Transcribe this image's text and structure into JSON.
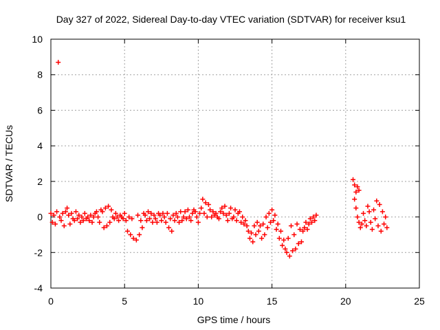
{
  "chart_data": {
    "type": "scatter",
    "title": "Day 327 of 2022, Sidereal Day-to-day VTEC variation (SDTVAR) for receiver ksu1",
    "xlabel": "GPS time / hours",
    "ylabel": "SDTVAR / TECUs",
    "xlim": [
      0,
      25
    ],
    "ylim": [
      -4,
      10
    ],
    "xticks": [
      "0",
      "5",
      "10",
      "15",
      "20",
      "25"
    ],
    "yticks": [
      "-4",
      "-2",
      "0",
      "2",
      "4",
      "6",
      "8",
      "10"
    ],
    "grid": true,
    "marker": "+",
    "series": [
      {
        "name": "ksu1",
        "color": "#ff0000",
        "points": [
          [
            0.0,
            0.2
          ],
          [
            0.1,
            -0.3
          ],
          [
            0.2,
            0.1
          ],
          [
            0.3,
            -0.4
          ],
          [
            0.4,
            0.3
          ],
          [
            0.5,
            8.7
          ],
          [
            0.6,
            0.0
          ],
          [
            0.7,
            -0.2
          ],
          [
            0.8,
            0.2
          ],
          [
            0.9,
            -0.5
          ],
          [
            1.0,
            0.3
          ],
          [
            1.1,
            0.5
          ],
          [
            1.2,
            0.1
          ],
          [
            1.3,
            -0.4
          ],
          [
            1.4,
            0.2
          ],
          [
            1.5,
            -0.1
          ],
          [
            1.6,
            -0.2
          ],
          [
            1.7,
            0.3
          ],
          [
            1.8,
            -0.1
          ],
          [
            1.9,
            0.1
          ],
          [
            2.0,
            -0.3
          ],
          [
            2.1,
            0.0
          ],
          [
            2.2,
            -0.2
          ],
          [
            2.3,
            0.2
          ],
          [
            2.4,
            -0.1
          ],
          [
            2.5,
            0.0
          ],
          [
            2.6,
            -0.2
          ],
          [
            2.7,
            0.1
          ],
          [
            2.8,
            -0.3
          ],
          [
            2.9,
            0.0
          ],
          [
            3.0,
            0.2
          ],
          [
            3.1,
            0.3
          ],
          [
            3.2,
            0.0
          ],
          [
            3.3,
            -0.3
          ],
          [
            3.4,
            0.4
          ],
          [
            3.5,
            0.3
          ],
          [
            3.6,
            -0.6
          ],
          [
            3.7,
            0.5
          ],
          [
            3.8,
            -0.5
          ],
          [
            3.9,
            0.6
          ],
          [
            4.0,
            -0.3
          ],
          [
            4.1,
            0.4
          ],
          [
            4.2,
            0.0
          ],
          [
            4.3,
            -0.1
          ],
          [
            4.4,
            0.2
          ],
          [
            4.5,
            0.0
          ],
          [
            4.6,
            -0.2
          ],
          [
            4.7,
            0.1
          ],
          [
            4.8,
            0.0
          ],
          [
            4.9,
            -0.1
          ],
          [
            5.0,
            0.2
          ],
          [
            5.1,
            -0.2
          ],
          [
            5.2,
            -0.8
          ],
          [
            5.3,
            0.0
          ],
          [
            5.4,
            -1.0
          ],
          [
            5.5,
            -0.1
          ],
          [
            5.6,
            -1.2
          ],
          [
            5.8,
            -1.3
          ],
          [
            5.9,
            0.1
          ],
          [
            6.0,
            -1.0
          ],
          [
            6.1,
            -0.2
          ],
          [
            6.2,
            -0.6
          ],
          [
            6.3,
            0.2
          ],
          [
            6.4,
            0.1
          ],
          [
            6.5,
            -0.2
          ],
          [
            6.6,
            0.3
          ],
          [
            6.7,
            -0.1
          ],
          [
            6.8,
            0.2
          ],
          [
            6.9,
            -0.3
          ],
          [
            7.0,
            0.1
          ],
          [
            7.1,
            -0.1
          ],
          [
            7.2,
            -0.3
          ],
          [
            7.3,
            0.2
          ],
          [
            7.4,
            0.1
          ],
          [
            7.5,
            -0.2
          ],
          [
            7.6,
            0.2
          ],
          [
            7.7,
            0.0
          ],
          [
            7.8,
            -0.3
          ],
          [
            7.9,
            0.2
          ],
          [
            8.0,
            -0.6
          ],
          [
            8.1,
            -0.1
          ],
          [
            8.2,
            -0.8
          ],
          [
            8.3,
            0.1
          ],
          [
            8.4,
            -0.2
          ],
          [
            8.5,
            0.2
          ],
          [
            8.6,
            0.0
          ],
          [
            8.7,
            -0.3
          ],
          [
            8.8,
            0.3
          ],
          [
            8.9,
            -0.2
          ],
          [
            9.0,
            0.0
          ],
          [
            9.1,
            0.3
          ],
          [
            9.2,
            -0.1
          ],
          [
            9.3,
            0.4
          ],
          [
            9.4,
            0.0
          ],
          [
            9.5,
            -0.2
          ],
          [
            9.6,
            0.2
          ],
          [
            9.7,
            0.4
          ],
          [
            9.8,
            0.3
          ],
          [
            9.9,
            0.0
          ],
          [
            10.0,
            -0.3
          ],
          [
            10.1,
            0.2
          ],
          [
            10.2,
            0.5
          ],
          [
            10.3,
            1.0
          ],
          [
            10.4,
            0.2
          ],
          [
            10.5,
            0.8
          ],
          [
            10.6,
            0.0
          ],
          [
            10.7,
            0.7
          ],
          [
            10.8,
            0.4
          ],
          [
            10.9,
            0.0
          ],
          [
            11.0,
            0.3
          ],
          [
            11.1,
            0.1
          ],
          [
            11.2,
            0.2
          ],
          [
            11.3,
            0.0
          ],
          [
            11.4,
            -0.1
          ],
          [
            11.5,
            0.3
          ],
          [
            11.6,
            0.5
          ],
          [
            11.7,
            0.2
          ],
          [
            11.8,
            0.6
          ],
          [
            11.9,
            0.1
          ],
          [
            12.0,
            -0.2
          ],
          [
            12.1,
            0.2
          ],
          [
            12.2,
            0.5
          ],
          [
            12.3,
            -0.1
          ],
          [
            12.4,
            0.0
          ],
          [
            12.5,
            0.4
          ],
          [
            12.6,
            -0.2
          ],
          [
            12.7,
            0.2
          ],
          [
            12.8,
            0.3
          ],
          [
            12.9,
            -0.3
          ],
          [
            13.0,
            0.0
          ],
          [
            13.1,
            -0.4
          ],
          [
            13.2,
            -0.2
          ],
          [
            13.3,
            -0.5
          ],
          [
            13.4,
            -0.8
          ],
          [
            13.5,
            -1.2
          ],
          [
            13.6,
            -0.9
          ],
          [
            13.7,
            -1.4
          ],
          [
            13.8,
            -0.5
          ],
          [
            13.9,
            -1.0
          ],
          [
            14.0,
            -0.3
          ],
          [
            14.1,
            -0.8
          ],
          [
            14.2,
            -0.5
          ],
          [
            14.3,
            -1.2
          ],
          [
            14.4,
            -0.4
          ],
          [
            14.5,
            -1.0
          ],
          [
            14.6,
            0.0
          ],
          [
            14.7,
            -0.6
          ],
          [
            14.8,
            0.2
          ],
          [
            14.9,
            -0.3
          ],
          [
            15.0,
            0.4
          ],
          [
            15.1,
            -0.2
          ],
          [
            15.2,
            0.1
          ],
          [
            15.3,
            -0.7
          ],
          [
            15.4,
            -0.4
          ],
          [
            15.5,
            -1.2
          ],
          [
            15.6,
            -0.8
          ],
          [
            15.7,
            -1.6
          ],
          [
            15.8,
            -1.3
          ],
          [
            15.9,
            -1.8
          ],
          [
            16.0,
            -2.0
          ],
          [
            16.1,
            -1.2
          ],
          [
            16.2,
            -2.2
          ],
          [
            16.3,
            -0.5
          ],
          [
            16.4,
            -1.9
          ],
          [
            16.5,
            -1.0
          ],
          [
            16.6,
            -1.8
          ],
          [
            16.7,
            -0.4
          ],
          [
            16.8,
            -1.5
          ],
          [
            16.9,
            -0.7
          ],
          [
            17.0,
            -1.4
          ],
          [
            17.1,
            -0.8
          ],
          [
            17.2,
            -0.6
          ],
          [
            17.3,
            -0.3
          ],
          [
            17.4,
            -0.7
          ],
          [
            17.5,
            -0.4
          ],
          [
            17.6,
            -0.1
          ],
          [
            17.7,
            -0.3
          ],
          [
            17.8,
            0.0
          ],
          [
            17.9,
            -0.2
          ],
          [
            18.0,
            0.1
          ],
          [
            20.5,
            2.1
          ],
          [
            20.6,
            1.8
          ],
          [
            20.7,
            1.4
          ],
          [
            20.8,
            1.7
          ],
          [
            20.9,
            1.5
          ],
          [
            20.6,
            1.0
          ],
          [
            20.7,
            0.5
          ],
          [
            20.8,
            0.0
          ],
          [
            20.9,
            -0.3
          ],
          [
            21.0,
            -0.6
          ],
          [
            21.1,
            -0.4
          ],
          [
            21.2,
            0.2
          ],
          [
            21.3,
            -0.2
          ],
          [
            21.4,
            -0.5
          ],
          [
            21.5,
            0.6
          ],
          [
            21.6,
            0.3
          ],
          [
            21.7,
            -0.3
          ],
          [
            21.8,
            -0.7
          ],
          [
            21.9,
            0.4
          ],
          [
            22.0,
            -0.1
          ],
          [
            22.1,
            0.9
          ],
          [
            22.2,
            -0.5
          ],
          [
            22.3,
            0.7
          ],
          [
            22.4,
            -0.8
          ],
          [
            22.5,
            0.3
          ],
          [
            22.6,
            -0.4
          ],
          [
            22.7,
            0.0
          ],
          [
            22.8,
            -0.6
          ]
        ]
      }
    ]
  }
}
